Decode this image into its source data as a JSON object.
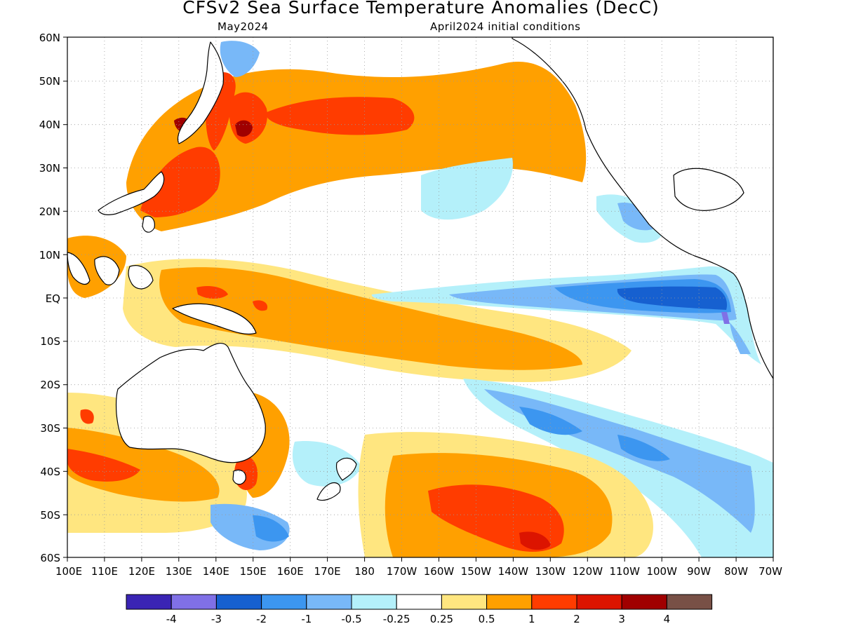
{
  "title": "CFSv2 Sea Surface Temperature Anomalies (DecC)",
  "subtitle_left": "May2024",
  "subtitle_right": "April2024 initial conditions",
  "map": {
    "lat_labels": [
      "60N",
      "50N",
      "40N",
      "30N",
      "20N",
      "10N",
      "EQ",
      "10S",
      "20S",
      "30S",
      "40S",
      "50S",
      "60S"
    ],
    "lon_labels": [
      "100E",
      "110E",
      "120E",
      "130E",
      "140E",
      "150E",
      "160E",
      "170E",
      "180",
      "170W",
      "160W",
      "150W",
      "140W",
      "130W",
      "120W",
      "110W",
      "100W",
      "90W",
      "80W",
      "70W"
    ],
    "gridlines": "dotted"
  },
  "legend": {
    "colors": [
      "#3a24b4",
      "#8070e6",
      "#1660d0",
      "#3c96f0",
      "#78b8f8",
      "#b4f0fa",
      "#ffffff",
      "#ffe680",
      "#ffa000",
      "#ff3c00",
      "#dc1400",
      "#a00000",
      "#785046"
    ],
    "labels": [
      "-4",
      "-3",
      "-2",
      "-1",
      "-0.5",
      "-0.25",
      "0.25",
      "0.5",
      "1",
      "2",
      "3",
      "4"
    ]
  }
}
